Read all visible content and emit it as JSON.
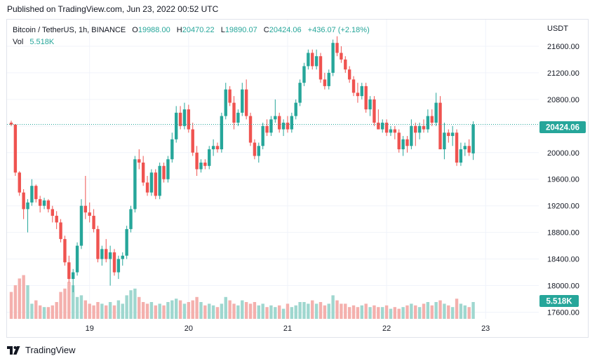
{
  "header": {
    "published": "Published on TradingView.com, Jun 23, 2022 00:52 UTC"
  },
  "legend": {
    "symbol": "Bitcoin / TetherUS, 1h, BINANCE",
    "o_label": "O",
    "o_value": "19988.00",
    "h_label": "H",
    "h_value": "20470.22",
    "l_label": "L",
    "l_value": "19890.07",
    "c_label": "C",
    "c_value": "20424.06",
    "change": "+436.07 (+2.18%)",
    "vol_label": "Vol",
    "vol_value": "5.518K"
  },
  "footer": {
    "brand": "TradingView"
  },
  "colors": {
    "up": "#26a69a",
    "down": "#ef5350",
    "up_vol": "#9fd7cf",
    "down_vol": "#f4b0ad",
    "grid": "#f0f3fa",
    "text": "#131722"
  },
  "chart_data": {
    "type": "candlestick",
    "title": "Bitcoin / TetherUS, 1h, BINANCE",
    "currency": "USDT",
    "ylim": [
      17500,
      22000
    ],
    "y_ticks": [
      21600,
      21200,
      20800,
      20400,
      20000,
      19600,
      19200,
      18800,
      18400,
      18000,
      17600
    ],
    "y_tick_labels": [
      "21600.00",
      "21200.00",
      "20800.00",
      "20400.00",
      "20000.00",
      "19600.00",
      "19200.00",
      "18800.00",
      "18400.00",
      "18000.00",
      "17600.00"
    ],
    "x_ticks": [
      {
        "index": 19,
        "label": "19"
      },
      {
        "index": 43,
        "label": "20"
      },
      {
        "index": 67,
        "label": "21"
      },
      {
        "index": 91,
        "label": "22"
      },
      {
        "index": 115,
        "label": "23"
      }
    ],
    "last_price": 20424.06,
    "last_price_label": "20424.06",
    "last_volume_label": "5.518K",
    "candles": [
      [
        20450,
        20480,
        20400,
        20420
      ],
      [
        20420,
        20430,
        19650,
        19700
      ],
      [
        19700,
        19720,
        19350,
        19400
      ],
      [
        19400,
        19450,
        19000,
        19150
      ],
      [
        19150,
        19300,
        18800,
        19250
      ],
      [
        19250,
        19600,
        19200,
        19500
      ],
      [
        19500,
        19520,
        19250,
        19300
      ],
      [
        19300,
        19350,
        19100,
        19200
      ],
      [
        19200,
        19320,
        19150,
        19280
      ],
      [
        19280,
        19300,
        19100,
        19150
      ],
      [
        19150,
        19200,
        18950,
        19050
      ],
      [
        19050,
        19120,
        18850,
        18950
      ],
      [
        18950,
        19000,
        18650,
        18700
      ],
      [
        18700,
        18750,
        18300,
        18350
      ],
      [
        18350,
        18450,
        18050,
        18100
      ],
      [
        18100,
        18250,
        17900,
        18200
      ],
      [
        18200,
        18650,
        18150,
        18600
      ],
      [
        18600,
        19300,
        18550,
        19200
      ],
      [
        19200,
        19650,
        19000,
        19100
      ],
      [
        19100,
        19250,
        18950,
        19050
      ],
      [
        19050,
        19150,
        18800,
        18850
      ],
      [
        18850,
        18900,
        18350,
        18400
      ],
      [
        18400,
        18600,
        18300,
        18550
      ],
      [
        18550,
        18700,
        18350,
        18400
      ],
      [
        18400,
        18600,
        18000,
        18500
      ],
      [
        18500,
        18550,
        18150,
        18200
      ],
      [
        18200,
        18450,
        18100,
        18400
      ],
      [
        18400,
        18500,
        18300,
        18450
      ],
      [
        18450,
        18900,
        18400,
        18850
      ],
      [
        18850,
        19200,
        18800,
        19150
      ],
      [
        19150,
        19950,
        19100,
        19900
      ],
      [
        19900,
        20050,
        19750,
        19850
      ],
      [
        19850,
        19950,
        19500,
        19550
      ],
      [
        19550,
        19650,
        19350,
        19400
      ],
      [
        19400,
        19750,
        19350,
        19700
      ],
      [
        19700,
        19750,
        19300,
        19350
      ],
      [
        19350,
        19850,
        19300,
        19800
      ],
      [
        19800,
        19850,
        19550,
        19600
      ],
      [
        19600,
        19950,
        19550,
        19900
      ],
      [
        19900,
        20300,
        19850,
        20200
      ],
      [
        20200,
        20700,
        20150,
        20600
      ],
      [
        20600,
        20700,
        20350,
        20400
      ],
      [
        20400,
        20750,
        20350,
        20650
      ],
      [
        20650,
        20720,
        20300,
        20350
      ],
      [
        20350,
        20450,
        19950,
        20000
      ],
      [
        20000,
        20100,
        19650,
        19750
      ],
      [
        19750,
        19900,
        19700,
        19850
      ],
      [
        19850,
        19900,
        19750,
        19800
      ],
      [
        19800,
        20100,
        19750,
        20050
      ],
      [
        20050,
        20200,
        19950,
        20100
      ],
      [
        20100,
        20150,
        20000,
        20050
      ],
      [
        20050,
        20600,
        20000,
        20550
      ],
      [
        20550,
        21050,
        20500,
        20950
      ],
      [
        20950,
        21000,
        20700,
        20750
      ],
      [
        20750,
        20850,
        20350,
        20450
      ],
      [
        20450,
        20650,
        20400,
        20600
      ],
      [
        20600,
        21050,
        20550,
        20950
      ],
      [
        20950,
        21100,
        20500,
        20550
      ],
      [
        20550,
        20600,
        20100,
        20150
      ],
      [
        20150,
        20200,
        19900,
        19950
      ],
      [
        19950,
        20150,
        19850,
        20100
      ],
      [
        20100,
        20450,
        20050,
        20400
      ],
      [
        20400,
        20500,
        20250,
        20300
      ],
      [
        20300,
        20550,
        20250,
        20500
      ],
      [
        20500,
        20800,
        20450,
        20550
      ],
      [
        20550,
        20600,
        20300,
        20350
      ],
      [
        20350,
        20500,
        20250,
        20450
      ],
      [
        20450,
        20550,
        20300,
        20350
      ],
      [
        20350,
        20600,
        20300,
        20550
      ],
      [
        20550,
        20800,
        20500,
        20750
      ],
      [
        20750,
        21100,
        20700,
        21050
      ],
      [
        21050,
        21350,
        21000,
        21300
      ],
      [
        21300,
        21550,
        21250,
        21500
      ],
      [
        21500,
        21550,
        21250,
        21300
      ],
      [
        21300,
        21550,
        21250,
        21450
      ],
      [
        21450,
        21500,
        21050,
        21100
      ],
      [
        21100,
        21200,
        20950,
        21000
      ],
      [
        21000,
        21250,
        20950,
        21200
      ],
      [
        21200,
        21700,
        21150,
        21650
      ],
      [
        21650,
        21750,
        21450,
        21500
      ],
      [
        21500,
        21600,
        21350,
        21400
      ],
      [
        21400,
        21450,
        21200,
        21250
      ],
      [
        21250,
        21300,
        21050,
        21100
      ],
      [
        21100,
        21150,
        20850,
        20900
      ],
      [
        20900,
        21050,
        20750,
        20850
      ],
      [
        20850,
        21050,
        20800,
        21000
      ],
      [
        21000,
        21050,
        20600,
        20650
      ],
      [
        20650,
        20850,
        20550,
        20800
      ],
      [
        20800,
        20850,
        20400,
        20450
      ],
      [
        20450,
        20650,
        20350,
        20350
      ],
      [
        20350,
        20500,
        20300,
        20450
      ],
      [
        20450,
        20500,
        20250,
        20300
      ],
      [
        20300,
        20400,
        20250,
        20350
      ],
      [
        20350,
        20400,
        20200,
        20300
      ],
      [
        20300,
        20350,
        20000,
        20050
      ],
      [
        20050,
        20250,
        19950,
        20200
      ],
      [
        20200,
        20250,
        20000,
        20100
      ],
      [
        20100,
        20500,
        20050,
        20400
      ],
      [
        20400,
        20450,
        20100,
        20300
      ],
      [
        20300,
        20450,
        20200,
        20400
      ],
      [
        20400,
        20500,
        20300,
        20350
      ],
      [
        20350,
        20650,
        20300,
        20550
      ],
      [
        20550,
        20650,
        20400,
        20450
      ],
      [
        20450,
        20900,
        20400,
        20750
      ],
      [
        20750,
        20850,
        20050,
        20050
      ],
      [
        20050,
        20450,
        19900,
        20300
      ],
      [
        20300,
        20350,
        20150,
        20250
      ],
      [
        20250,
        20400,
        20100,
        20300
      ],
      [
        20300,
        20350,
        19800,
        19850
      ],
      [
        19850,
        20150,
        19800,
        20050
      ],
      [
        20050,
        20150,
        19950,
        20100
      ],
      [
        20100,
        20200,
        19950,
        20000
      ],
      [
        19988,
        20470,
        19890,
        20424
      ]
    ],
    "volume": [
      1.6,
      2.0,
      2.4,
      2.6,
      2.0,
      0.9,
      1.1,
      0.8,
      0.7,
      0.7,
      0.8,
      1.0,
      1.6,
      1.8,
      2.2,
      2.0,
      1.3,
      1.4,
      1.1,
      0.9,
      0.8,
      1.0,
      0.9,
      0.8,
      1.0,
      0.8,
      1.1,
      0.9,
      1.4,
      1.7,
      1.8,
      1.3,
      1.0,
      0.9,
      1.0,
      0.8,
      0.9,
      0.8,
      1.0,
      1.1,
      1.2,
      1.1,
      0.9,
      1.0,
      1.1,
      1.3,
      1.0,
      0.8,
      0.9,
      0.8,
      0.7,
      0.9,
      1.3,
      1.1,
      0.9,
      0.8,
      1.1,
      1.0,
      0.9,
      1.0,
      0.8,
      0.9,
      0.7,
      0.8,
      0.7,
      0.8,
      0.6,
      0.9,
      0.7,
      0.8,
      1.0,
      1.0,
      0.9,
      1.1,
      0.9,
      1.0,
      0.8,
      0.9,
      1.4,
      1.1,
      0.9,
      0.9,
      0.7,
      0.8,
      0.7,
      0.8,
      0.9,
      0.7,
      0.8,
      0.7,
      0.7,
      0.8,
      0.6,
      0.7,
      0.6,
      0.7,
      0.8,
      0.9,
      0.8,
      0.7,
      0.9,
      1.0,
      0.8,
      1.0,
      1.1,
      0.9,
      0.8,
      0.7,
      1.2,
      0.9,
      0.8,
      0.7,
      1.0
    ]
  }
}
